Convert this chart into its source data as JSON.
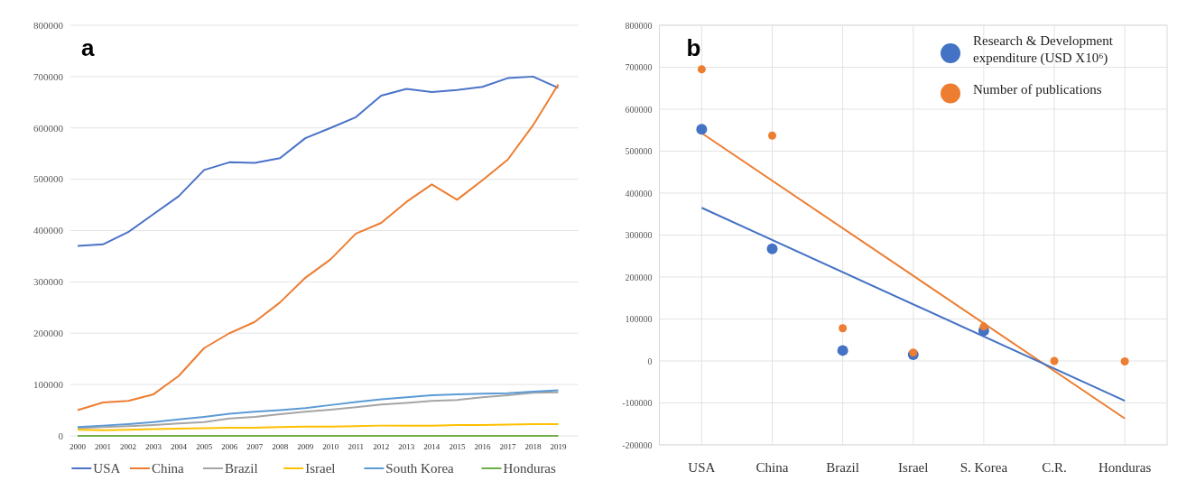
{
  "chart_data": [
    {
      "type": "line",
      "annotations": [
        "a"
      ],
      "categories": [
        "2000",
        "2001",
        "2002",
        "2003",
        "2004",
        "2005",
        "2006",
        "2007",
        "2008",
        "2009",
        "2010",
        "2011",
        "2012",
        "2013",
        "2014",
        "2015",
        "2016",
        "2017",
        "2018",
        "2019"
      ],
      "ylim": [
        0,
        800000
      ],
      "yticks": [
        0,
        100000,
        200000,
        300000,
        400000,
        500000,
        600000,
        700000,
        800000
      ],
      "grid": "y",
      "legend": "bottom",
      "series": [
        {
          "name": "USA",
          "color": "#4a72c8",
          "values": [
            370000,
            373000,
            397000,
            432000,
            467000,
            518000,
            533000,
            532000,
            541000,
            580000,
            600000,
            621000,
            663000,
            676000,
            670000,
            674000,
            680000,
            697000,
            700000,
            678000
          ]
        },
        {
          "name": "China",
          "color": "#ed7d31",
          "values": [
            50000,
            65000,
            68000,
            81000,
            117000,
            171000,
            200000,
            222000,
            260000,
            308000,
            344000,
            394000,
            415000,
            456000,
            490000,
            460000,
            498000,
            538000,
            605000,
            685000
          ]
        },
        {
          "name": "Brazil",
          "color": "#a5a5a5",
          "values": [
            15000,
            17000,
            19000,
            21000,
            24000,
            27000,
            34000,
            37000,
            42000,
            47000,
            51000,
            56000,
            61000,
            64000,
            68000,
            70000,
            75000,
            79000,
            84000,
            85000
          ]
        },
        {
          "name": "Israel",
          "color": "#ffc000",
          "values": [
            12000,
            11000,
            12000,
            13000,
            14000,
            15000,
            16000,
            16000,
            17000,
            18000,
            18000,
            19000,
            20000,
            20000,
            20000,
            21000,
            21000,
            22000,
            23000,
            23000
          ]
        },
        {
          "name": "South Korea",
          "color": "#5b9bd5",
          "values": [
            17000,
            20000,
            23000,
            27000,
            32000,
            37000,
            43000,
            47000,
            50000,
            54000,
            60000,
            66000,
            71000,
            75000,
            79000,
            81000,
            82000,
            83000,
            86000,
            89000
          ]
        },
        {
          "name": "Honduras",
          "color": "#70ad47",
          "values": [
            0,
            0,
            0,
            0,
            0,
            0,
            0,
            0,
            0,
            0,
            0,
            0,
            0,
            0,
            0,
            0,
            0,
            0,
            0,
            0
          ]
        }
      ]
    },
    {
      "type": "scatter",
      "annotations": [
        "b"
      ],
      "categories": [
        "USA",
        "China",
        "Brazil",
        "Israel",
        "S. Korea",
        "C.R.",
        "Honduras"
      ],
      "ylim": [
        -200000,
        800000
      ],
      "yticks": [
        -200000,
        -100000,
        0,
        100000,
        200000,
        300000,
        400000,
        500000,
        600000,
        700000,
        800000
      ],
      "grid": true,
      "legend": "top right",
      "marker": "circle",
      "series": [
        {
          "type": "line",
          "marker": "none",
          "x": [
            "USA",
            "Honduras"
          ],
          "color": "#ed7d31",
          "values": [
            543000,
            -137000
          ]
        },
        {
          "type": "line",
          "marker": "none",
          "x": [
            "USA",
            "Honduras"
          ],
          "color": "#4472c4",
          "values": [
            365000,
            -95000
          ]
        },
        {
          "name": "Research & Development expenditure (USD X10⁶)",
          "color": "#4472c4",
          "values": [
            552000,
            267000,
            25000,
            15000,
            72000,
            null,
            null
          ]
        },
        {
          "name": "Number of publications",
          "color": "#ed7d31",
          "values": [
            695000,
            537000,
            78000,
            20000,
            82000,
            0,
            -1000
          ]
        }
      ]
    }
  ]
}
